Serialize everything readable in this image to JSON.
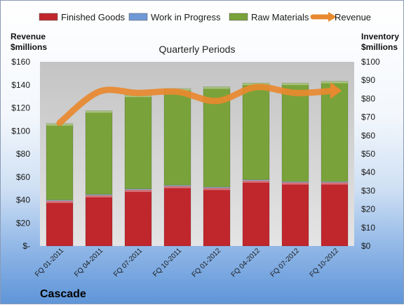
{
  "chart_data": {
    "type": "bar",
    "title": "Quarterly Periods",
    "categories": [
      "FQ 01-2011",
      "FQ 04-2011",
      "FQ 07-2011",
      "FQ 10-2011",
      "FQ 01-2012",
      "FQ 04-2012",
      "FQ 07-2012",
      "FQ 10-2012"
    ],
    "series": [
      {
        "name": "Finished Goods",
        "axis": "right",
        "color": "#c0272d",
        "values": [
          24.5,
          27.5,
          30.5,
          32.5,
          31.5,
          35.5,
          34.5,
          34.5
        ]
      },
      {
        "name": "Work in Progress",
        "axis": "right",
        "color": "#6f98d6",
        "values": [
          0.5,
          0.5,
          0.5,
          0.5,
          0.5,
          0.5,
          0.5,
          0.5
        ]
      },
      {
        "name": "Raw Materials",
        "axis": "right",
        "color": "#7aa23a",
        "values": [
          41.5,
          45.5,
          51.0,
          52.5,
          54.5,
          52.5,
          53.5,
          54.5
        ]
      },
      {
        "name": "Revenue",
        "axis": "left",
        "type": "line",
        "color": "#e8892f",
        "values": [
          107,
          134,
          133,
          134,
          126,
          138,
          133,
          135
        ]
      }
    ],
    "left_axis": {
      "label_line1": "Revenue",
      "label_line2": "$millions",
      "min": 0,
      "max": 160,
      "ticks": [
        "$-",
        "$20",
        "$40",
        "$60",
        "$80",
        "$100",
        "$120",
        "$140",
        "$160"
      ]
    },
    "right_axis": {
      "label_line1": "Inventory",
      "label_line2": "$millions",
      "min": 0,
      "max": 100,
      "ticks": [
        "$0",
        "$10",
        "$20",
        "$30",
        "$40",
        "$50",
        "$60",
        "$70",
        "$80",
        "$90",
        "$100"
      ]
    },
    "legend_position": "top",
    "grid": false
  },
  "company": "Cascade"
}
